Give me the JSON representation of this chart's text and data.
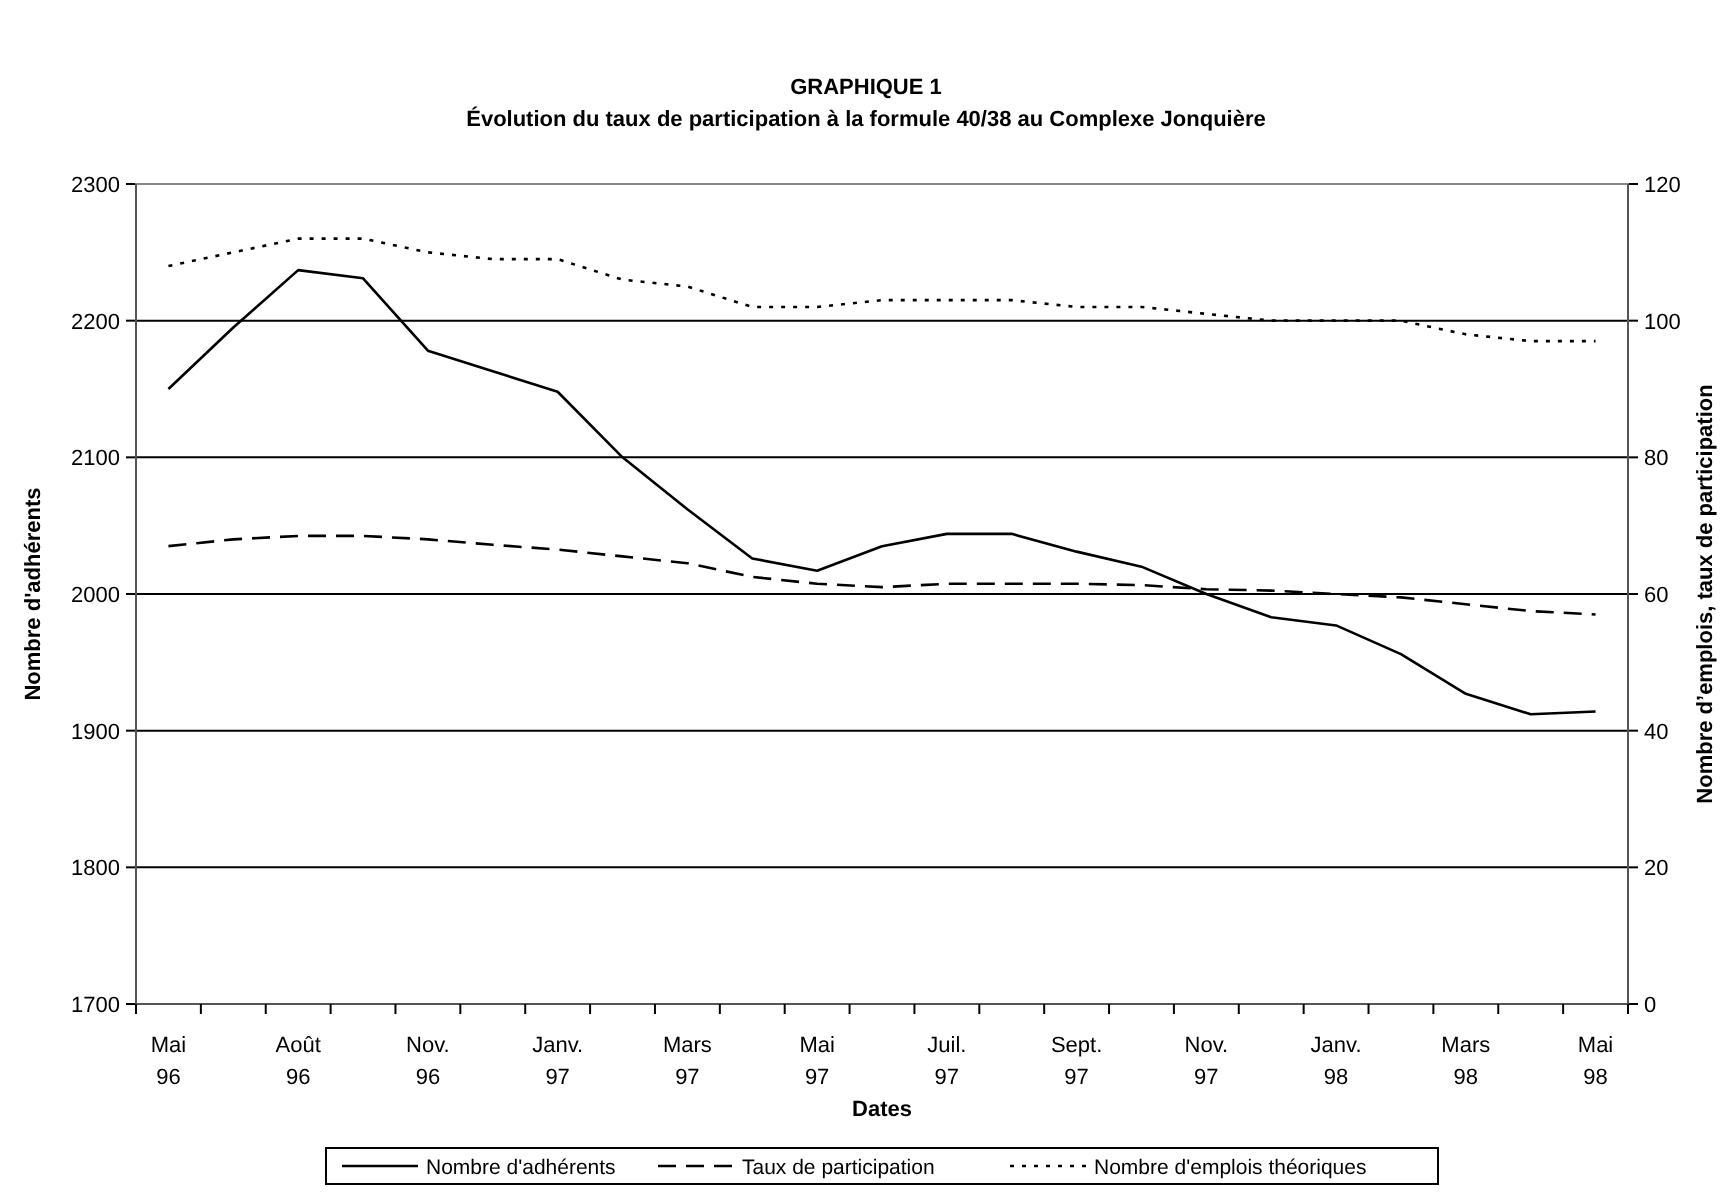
{
  "chart_data": {
    "type": "line",
    "title": "GRAPHIQUE 1",
    "subtitle": "Évolution du taux de participation à la formule 40/38 au Complexe Jonquière",
    "xlabel": "Dates",
    "ylabel": "Nombre d'adhérents",
    "y2label": "Nombre d’emplois, taux de participation",
    "categories": [
      "Mai\n96",
      null,
      "Août\n96",
      null,
      "Nov.\n96",
      null,
      "Janv.\n97",
      null,
      "Mars\n97",
      null,
      "Mai\n97",
      null,
      "Juil.\n97",
      null,
      "Sept.\n97",
      null,
      "Nov.\n97",
      null,
      "Janv.\n98",
      null,
      "Mars\n98",
      null,
      "Mai\n98"
    ],
    "series": [
      {
        "name": "Nombre d'adhérents",
        "color": "#000000",
        "line_style": "solid",
        "values": [
          2150,
          2195,
          2237,
          2231,
          2178,
          2163,
          2148,
          2100,
          2062,
          2026,
          2017,
          2035,
          2044,
          2044,
          2031,
          2020,
          2000,
          1983,
          1977,
          1956,
          1927,
          1912,
          1914
        ]
      },
      {
        "name": "Taux de participation",
        "color": "#000000",
        "line_style": "dashed",
        "axis": "y2",
        "values": [
          67,
          68,
          68.5,
          68.5,
          68,
          67.2,
          66.5,
          65.5,
          64.5,
          62.5,
          61.5,
          61,
          61.5,
          61.5,
          61.5,
          61.3,
          60.7,
          60.5,
          60,
          59.5,
          58.5,
          57.5,
          57
        ]
      },
      {
        "name": "Nombre d'emplois théoriques",
        "color": "#000000",
        "line_style": "dotted",
        "axis": "y2",
        "values": [
          108,
          110,
          112,
          112,
          110,
          109,
          109,
          106,
          105,
          102,
          102,
          103,
          103,
          103,
          102,
          102,
          101,
          100,
          100,
          100,
          98,
          97,
          97
        ]
      }
    ],
    "ylim": [
      1700,
      2300
    ],
    "yticks": [
      1700,
      1800,
      1900,
      2000,
      2100,
      2200,
      2300
    ],
    "y2lim": [
      0,
      120
    ],
    "y2ticks": [
      0,
      20,
      40,
      60,
      80,
      100,
      120
    ],
    "grid": "y",
    "legend": "bottom"
  }
}
